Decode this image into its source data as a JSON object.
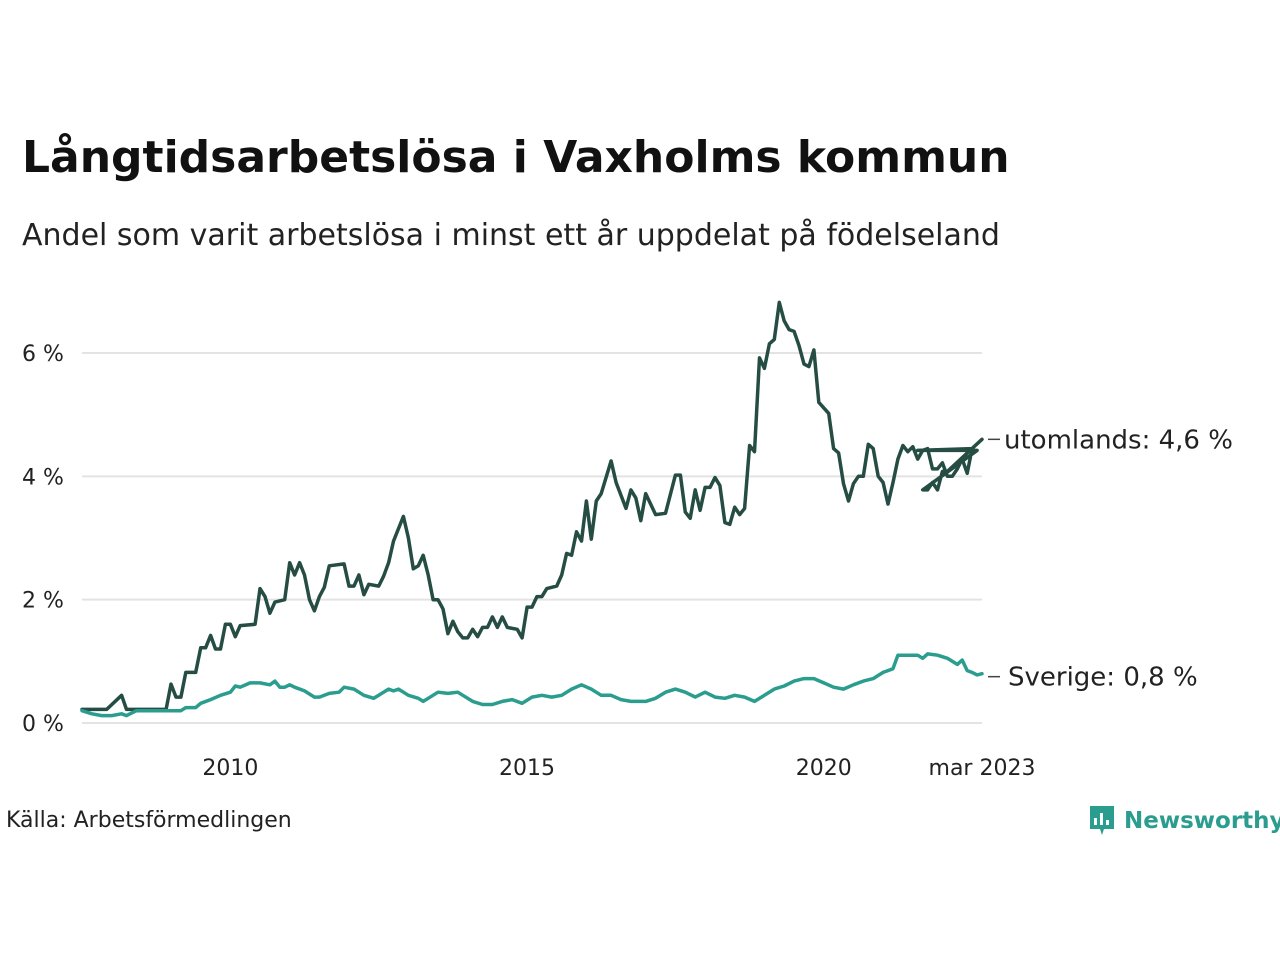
{
  "chart_data": {
    "type": "line",
    "title": "Långtidsarbetslösa i Vaxholms kommun",
    "subtitle": "Andel som varit arbetslösa i minst ett år uppdelat på födelseland",
    "source": "Källa: Arbetsförmedlingen",
    "brand": "Newsworthy",
    "x_ticks": [
      "2010",
      "2015",
      "2020",
      "mar 2023"
    ],
    "y_ticks": [
      "0 %",
      "2 %",
      "4 %",
      "6 %"
    ],
    "ylim": [
      0,
      7
    ],
    "y_unit": "%",
    "grid": "horizontal",
    "x_start": "2008-01",
    "x_end": "2023-03",
    "series": [
      {
        "name": "utomlands",
        "end_label": "utomlands: 4,6 %",
        "color": "#264d44",
        "points": [
          [
            "2008-01",
            0.22
          ],
          [
            "2008-06",
            0.22
          ],
          [
            "2008-09",
            0.45
          ],
          [
            "2008-10",
            0.22
          ],
          [
            "2009-01",
            0.22
          ],
          [
            "2009-06",
            0.22
          ],
          [
            "2009-07",
            0.63
          ],
          [
            "2009-08",
            0.42
          ],
          [
            "2009-09",
            0.42
          ],
          [
            "2009-10",
            0.82
          ],
          [
            "2009-12",
            0.82
          ],
          [
            "2010-01",
            1.22
          ],
          [
            "2010-02",
            1.22
          ],
          [
            "2010-03",
            1.42
          ],
          [
            "2010-04",
            1.2
          ],
          [
            "2010-05",
            1.2
          ],
          [
            "2010-06",
            1.6
          ],
          [
            "2010-07",
            1.6
          ],
          [
            "2010-08",
            1.4
          ],
          [
            "2010-09",
            1.58
          ],
          [
            "2010-12",
            1.6
          ],
          [
            "2011-01",
            2.18
          ],
          [
            "2011-02",
            2.05
          ],
          [
            "2011-03",
            1.78
          ],
          [
            "2011-04",
            1.96
          ],
          [
            "2011-06",
            2.0
          ],
          [
            "2011-07",
            2.6
          ],
          [
            "2011-08",
            2.4
          ],
          [
            "2011-09",
            2.6
          ],
          [
            "2011-10",
            2.4
          ],
          [
            "2011-11",
            2.0
          ],
          [
            "2011-12",
            1.82
          ],
          [
            "2012-01",
            2.05
          ],
          [
            "2012-02",
            2.2
          ],
          [
            "2012-03",
            2.55
          ],
          [
            "2012-06",
            2.58
          ],
          [
            "2012-07",
            2.22
          ],
          [
            "2012-08",
            2.22
          ],
          [
            "2012-09",
            2.4
          ],
          [
            "2012-10",
            2.08
          ],
          [
            "2012-11",
            2.25
          ],
          [
            "2013-01",
            2.22
          ],
          [
            "2013-02",
            2.38
          ],
          [
            "2013-03",
            2.6
          ],
          [
            "2013-04",
            2.95
          ],
          [
            "2013-06",
            3.35
          ],
          [
            "2013-07",
            3.0
          ],
          [
            "2013-08",
            2.5
          ],
          [
            "2013-09",
            2.55
          ],
          [
            "2013-10",
            2.72
          ],
          [
            "2013-11",
            2.4
          ],
          [
            "2013-12",
            2.0
          ],
          [
            "2014-01",
            2.0
          ],
          [
            "2014-02",
            1.85
          ],
          [
            "2014-03",
            1.45
          ],
          [
            "2014-04",
            1.65
          ],
          [
            "2014-05",
            1.48
          ],
          [
            "2014-06",
            1.38
          ],
          [
            "2014-07",
            1.38
          ],
          [
            "2014-08",
            1.52
          ],
          [
            "2014-09",
            1.4
          ],
          [
            "2014-10",
            1.55
          ],
          [
            "2014-11",
            1.55
          ],
          [
            "2014-12",
            1.72
          ],
          [
            "2015-01",
            1.55
          ],
          [
            "2015-02",
            1.72
          ],
          [
            "2015-03",
            1.55
          ],
          [
            "2015-05",
            1.52
          ],
          [
            "2015-06",
            1.38
          ],
          [
            "2015-07",
            1.88
          ],
          [
            "2015-08",
            1.88
          ],
          [
            "2015-09",
            2.05
          ],
          [
            "2015-10",
            2.05
          ],
          [
            "2015-11",
            2.18
          ],
          [
            "2016-01",
            2.22
          ],
          [
            "2016-02",
            2.4
          ],
          [
            "2016-03",
            2.75
          ],
          [
            "2016-04",
            2.72
          ],
          [
            "2016-05",
            3.1
          ],
          [
            "2016-06",
            2.95
          ],
          [
            "2016-07",
            3.6
          ],
          [
            "2016-08",
            2.98
          ],
          [
            "2016-09",
            3.6
          ],
          [
            "2016-10",
            3.72
          ],
          [
            "2016-12",
            4.25
          ],
          [
            "2017-01",
            3.9
          ],
          [
            "2017-03",
            3.48
          ],
          [
            "2017-04",
            3.78
          ],
          [
            "2017-05",
            3.65
          ],
          [
            "2017-06",
            3.28
          ],
          [
            "2017-07",
            3.72
          ],
          [
            "2017-09",
            3.38
          ],
          [
            "2017-11",
            3.4
          ],
          [
            "2018-01",
            4.02
          ],
          [
            "2018-02",
            4.02
          ],
          [
            "2018-03",
            3.42
          ],
          [
            "2018-04",
            3.32
          ],
          [
            "2018-05",
            3.78
          ],
          [
            "2018-06",
            3.45
          ],
          [
            "2018-07",
            3.82
          ],
          [
            "2018-08",
            3.82
          ],
          [
            "2018-09",
            3.98
          ],
          [
            "2018-10",
            3.85
          ],
          [
            "2018-11",
            3.25
          ],
          [
            "2018-12",
            3.22
          ],
          [
            "2019-01",
            3.5
          ],
          [
            "2019-02",
            3.38
          ],
          [
            "2019-03",
            3.48
          ],
          [
            "2019-04",
            4.5
          ],
          [
            "2019-05",
            4.4
          ],
          [
            "2019-06",
            5.92
          ],
          [
            "2019-07",
            5.75
          ],
          [
            "2019-08",
            6.15
          ],
          [
            "2019-09",
            6.22
          ],
          [
            "2019-10",
            6.82
          ],
          [
            "2019-11",
            6.52
          ],
          [
            "2019-12",
            6.38
          ],
          [
            "2020-01",
            6.35
          ],
          [
            "2020-02",
            6.12
          ],
          [
            "2020-03",
            5.82
          ],
          [
            "2020-04",
            5.78
          ],
          [
            "2020-05",
            6.05
          ],
          [
            "2020-06",
            5.2
          ],
          [
            "2020-08",
            5.02
          ],
          [
            "2020-09",
            4.45
          ],
          [
            "2020-10",
            4.38
          ],
          [
            "2020-11",
            3.88
          ],
          [
            "2020-12",
            3.6
          ],
          [
            "2021-01",
            3.88
          ],
          [
            "2021-02",
            4.0
          ],
          [
            "2021-03",
            4.0
          ],
          [
            "2021-04",
            4.52
          ],
          [
            "2021-05",
            4.45
          ],
          [
            "2021-06",
            4.0
          ],
          [
            "2021-07",
            3.9
          ],
          [
            "2021-08",
            3.55
          ],
          [
            "2021-09",
            3.9
          ],
          [
            "2021-10",
            4.28
          ],
          [
            "2021-11",
            4.5
          ],
          [
            "2021-12",
            4.4
          ],
          [
            "2022-01",
            4.48
          ],
          [
            "2022-02",
            4.28
          ],
          [
            "2022-03",
            4.42
          ],
          [
            "2022-04",
            4.45
          ],
          [
            "2022-05",
            4.12
          ],
          [
            "2022-06",
            4.12
          ],
          [
            "2022-07",
            4.22
          ],
          [
            "2022-08",
            4.0
          ],
          [
            "2022-09",
            4.0
          ],
          [
            "2022-10",
            4.12
          ],
          [
            "2022-11",
            4.28
          ],
          [
            "2022-12",
            4.05
          ],
          [
            "2023-01",
            4.45
          ],
          [
            "2022-02",
            4.42
          ],
          [
            "2023-02",
            4.42
          ],
          [
            "2022-03",
            3.78
          ],
          [
            "2022-04",
            3.78
          ],
          [
            "2022-05",
            3.9
          ],
          [
            "2022-06",
            3.78
          ],
          [
            "2022-07",
            4.08
          ],
          [
            "2022-08",
            4.08
          ],
          [
            "2023-03",
            4.6
          ]
        ]
      },
      {
        "name": "Sverige",
        "end_label": "Sverige: 0,8 %",
        "color": "#2a9d8f",
        "points": [
          [
            "2008-01",
            0.2
          ],
          [
            "2008-03",
            0.15
          ],
          [
            "2008-05",
            0.12
          ],
          [
            "2008-07",
            0.12
          ],
          [
            "2008-09",
            0.15
          ],
          [
            "2008-10",
            0.12
          ],
          [
            "2008-12",
            0.2
          ],
          [
            "2009-01",
            0.2
          ],
          [
            "2009-06",
            0.2
          ],
          [
            "2009-09",
            0.2
          ],
          [
            "2009-10",
            0.25
          ],
          [
            "2009-12",
            0.25
          ],
          [
            "2010-01",
            0.32
          ],
          [
            "2010-03",
            0.38
          ],
          [
            "2010-05",
            0.45
          ],
          [
            "2010-07",
            0.5
          ],
          [
            "2010-08",
            0.6
          ],
          [
            "2010-09",
            0.58
          ],
          [
            "2010-11",
            0.65
          ],
          [
            "2011-01",
            0.65
          ],
          [
            "2011-03",
            0.62
          ],
          [
            "2011-04",
            0.68
          ],
          [
            "2011-05",
            0.58
          ],
          [
            "2011-06",
            0.58
          ],
          [
            "2011-07",
            0.62
          ],
          [
            "2011-08",
            0.58
          ],
          [
            "2011-10",
            0.52
          ],
          [
            "2011-12",
            0.42
          ],
          [
            "2012-01",
            0.42
          ],
          [
            "2012-03",
            0.48
          ],
          [
            "2012-05",
            0.5
          ],
          [
            "2012-06",
            0.58
          ],
          [
            "2012-08",
            0.55
          ],
          [
            "2012-10",
            0.45
          ],
          [
            "2012-12",
            0.4
          ],
          [
            "2013-01",
            0.45
          ],
          [
            "2013-03",
            0.55
          ],
          [
            "2013-04",
            0.52
          ],
          [
            "2013-05",
            0.55
          ],
          [
            "2013-07",
            0.45
          ],
          [
            "2013-09",
            0.4
          ],
          [
            "2013-10",
            0.35
          ],
          [
            "2013-11",
            0.4
          ],
          [
            "2014-01",
            0.5
          ],
          [
            "2014-03",
            0.48
          ],
          [
            "2014-05",
            0.5
          ],
          [
            "2014-06",
            0.45
          ],
          [
            "2014-08",
            0.35
          ],
          [
            "2014-10",
            0.3
          ],
          [
            "2014-12",
            0.3
          ],
          [
            "2015-02",
            0.35
          ],
          [
            "2015-04",
            0.38
          ],
          [
            "2015-06",
            0.32
          ],
          [
            "2015-08",
            0.42
          ],
          [
            "2015-10",
            0.45
          ],
          [
            "2015-12",
            0.42
          ],
          [
            "2016-02",
            0.45
          ],
          [
            "2016-04",
            0.55
          ],
          [
            "2016-06",
            0.62
          ],
          [
            "2016-08",
            0.55
          ],
          [
            "2016-10",
            0.45
          ],
          [
            "2016-12",
            0.45
          ],
          [
            "2017-02",
            0.38
          ],
          [
            "2017-04",
            0.35
          ],
          [
            "2017-07",
            0.35
          ],
          [
            "2017-09",
            0.4
          ],
          [
            "2017-11",
            0.5
          ],
          [
            "2018-01",
            0.55
          ],
          [
            "2018-03",
            0.5
          ],
          [
            "2018-05",
            0.42
          ],
          [
            "2018-07",
            0.5
          ],
          [
            "2018-09",
            0.42
          ],
          [
            "2018-11",
            0.4
          ],
          [
            "2019-01",
            0.45
          ],
          [
            "2019-03",
            0.42
          ],
          [
            "2019-05",
            0.35
          ],
          [
            "2019-07",
            0.45
          ],
          [
            "2019-09",
            0.55
          ],
          [
            "2019-11",
            0.6
          ],
          [
            "2020-01",
            0.68
          ],
          [
            "2020-03",
            0.72
          ],
          [
            "2020-05",
            0.72
          ],
          [
            "2020-07",
            0.65
          ],
          [
            "2020-09",
            0.58
          ],
          [
            "2020-11",
            0.55
          ],
          [
            "2021-01",
            0.62
          ],
          [
            "2021-03",
            0.68
          ],
          [
            "2021-05",
            0.72
          ],
          [
            "2021-07",
            0.82
          ],
          [
            "2021-09",
            0.88
          ],
          [
            "2021-10",
            1.1
          ],
          [
            "2021-12",
            1.1
          ],
          [
            "2022-02",
            1.1
          ],
          [
            "2022-03",
            1.05
          ],
          [
            "2022-04",
            1.12
          ],
          [
            "2022-06",
            1.1
          ],
          [
            "2022-08",
            1.05
          ],
          [
            "2022-10",
            0.95
          ],
          [
            "2022-11",
            1.02
          ],
          [
            "2022-12",
            0.85
          ],
          [
            "2023-01",
            0.82
          ],
          [
            "2023-02",
            0.78
          ],
          [
            "2023-03",
            0.8
          ]
        ]
      }
    ]
  }
}
